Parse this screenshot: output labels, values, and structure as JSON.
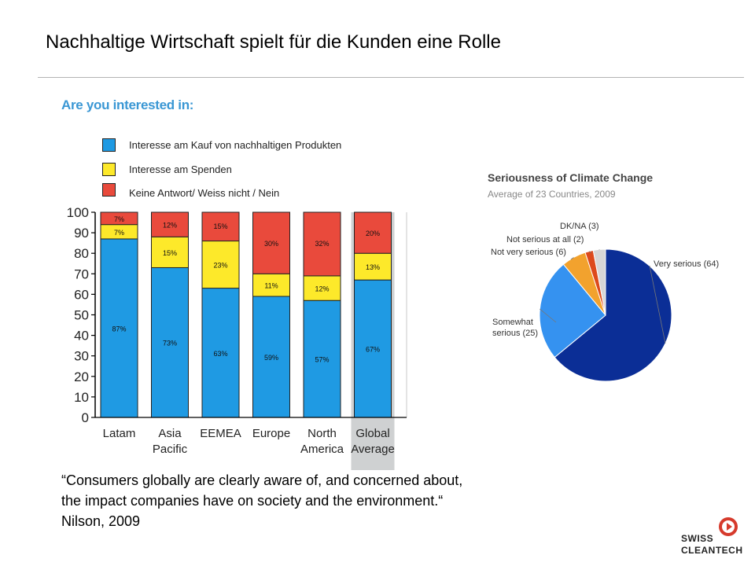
{
  "slide": {
    "title": "Nachhaltige Wirtschaft spielt für die Kunden eine Rolle",
    "quote": "“Consumers globally are clearly aware of, and concerned about, the impact companies have on society and the environment.“ Nilson, 2009",
    "logo_line1": "SWISS",
    "logo_line2": "CLEANTECH"
  },
  "chart_data": [
    {
      "type": "bar",
      "stacked": true,
      "subtitle": "Are you interested in:",
      "categories": [
        "Latam",
        "Asia\nPacific",
        "EEMEA",
        "Europe",
        "North\nAmerica",
        "Global\nAverage"
      ],
      "series": [
        {
          "name": "Interesse am Kauf von nachhaltigen Produkten",
          "values": [
            87,
            73,
            63,
            59,
            57,
            67
          ],
          "labels": [
            "87%",
            "73%",
            "63%",
            "59%",
            "57%",
            "67%"
          ],
          "color": "#1f9ae3"
        },
        {
          "name": "Interesse am Spenden",
          "values": [
            7,
            15,
            23,
            11,
            12,
            13
          ],
          "labels": [
            "7%",
            "15%",
            "23%",
            "11%",
            "12%",
            "13%"
          ],
          "color": "#fde92a"
        },
        {
          "name": "Keine Antwort/ Weiss nicht / Nein",
          "values": [
            7,
            12,
            15,
            30,
            32,
            20
          ],
          "labels": [
            "7%",
            "12%",
            "15%",
            "30%",
            "32%",
            "20%"
          ],
          "color": "#e94a3c"
        }
      ],
      "yticks": [
        "0",
        "10",
        "20",
        "30",
        "40",
        "50",
        "60",
        "70",
        "80",
        "90",
        "100"
      ],
      "ylim": [
        0,
        100
      ],
      "highlight_category": "Global\nAverage",
      "grid": false,
      "legend_placement": "top"
    },
    {
      "type": "pie",
      "title": "Seriousness of Climate Change",
      "subtitle": "Average of 23 Countries, 2009",
      "slices": [
        {
          "label": "Very serious (64)",
          "value": 64,
          "color": "#0b2e96"
        },
        {
          "label": "Somewhat serious (25)",
          "label_lines": [
            "Somewhat",
            "serious (25)"
          ],
          "value": 25,
          "color": "#3592f0"
        },
        {
          "label": "Not very serious (6)",
          "value": 6,
          "color": "#f2a22e"
        },
        {
          "label": "Not serious at all (2)",
          "value": 2,
          "color": "#dd4a1c"
        },
        {
          "label": "DK/NA (3)",
          "value": 3,
          "color": "#d6d6d6"
        }
      ]
    }
  ]
}
